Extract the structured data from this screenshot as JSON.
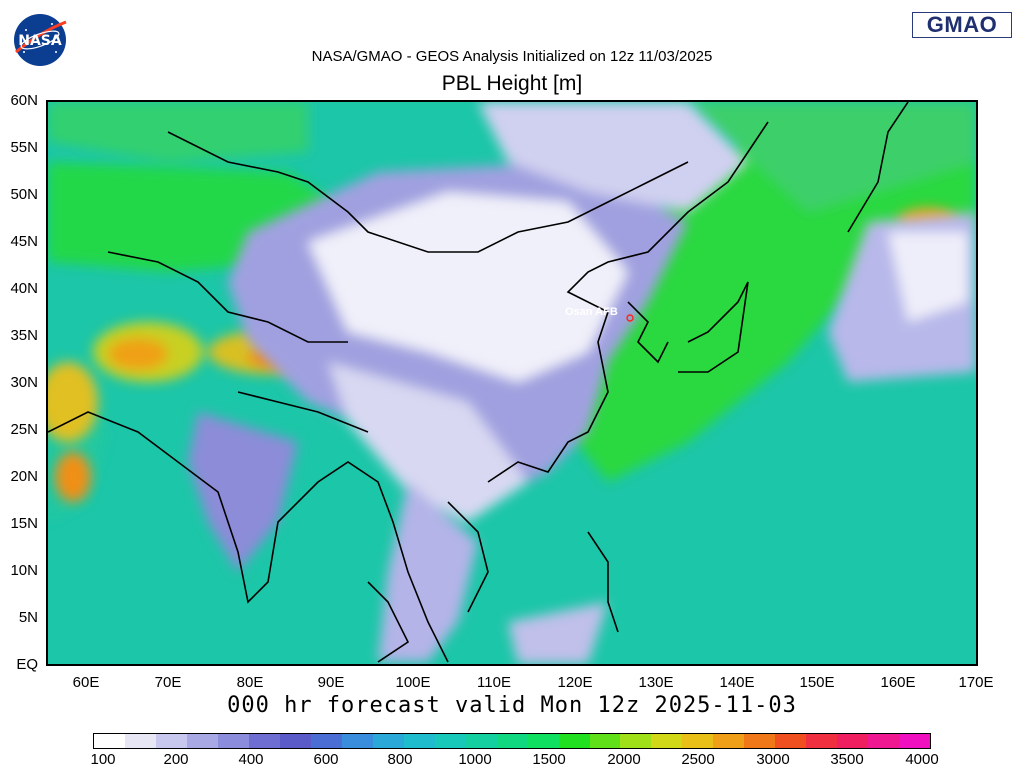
{
  "header": {
    "source_line": "NASA/GMAO - GEOS Analysis Initialized on 12z 11/03/2025",
    "title": "PBL Height [m]",
    "valid_line": "000 hr forecast valid Mon 12z 2025-11-03"
  },
  "logos": {
    "nasa": "NASA",
    "gmao": "GMAO"
  },
  "map": {
    "lat_labels": [
      "60N",
      "55N",
      "50N",
      "45N",
      "40N",
      "35N",
      "30N",
      "25N",
      "20N",
      "15N",
      "10N",
      "5N",
      "EQ"
    ],
    "lon_labels": [
      "60E",
      "70E",
      "80E",
      "90E",
      "100E",
      "110E",
      "120E",
      "130E",
      "140E",
      "150E",
      "160E",
      "170E"
    ],
    "station": "Osan AFB",
    "background_color": "#1fc8a8"
  },
  "colorbar": {
    "labels": [
      "100",
      "200",
      "400",
      "600",
      "800",
      "1000",
      "1500",
      "2000",
      "2500",
      "3000",
      "3500",
      "4000"
    ],
    "colors": [
      "#ffffff",
      "#e6e6f5",
      "#c8c8ee",
      "#a8a8e4",
      "#8c8cdc",
      "#6e6ed2",
      "#5a5ac8",
      "#4a6ed4",
      "#3a8cdc",
      "#2aa8d8",
      "#1ebccc",
      "#18c8b8",
      "#14d0a0",
      "#10d880",
      "#10e060",
      "#20e020",
      "#60e018",
      "#a0e018",
      "#d0d818",
      "#e8c018",
      "#f0a018",
      "#f07818",
      "#f05020",
      "#f03040",
      "#f02060",
      "#f01890",
      "#f010c0"
    ]
  }
}
